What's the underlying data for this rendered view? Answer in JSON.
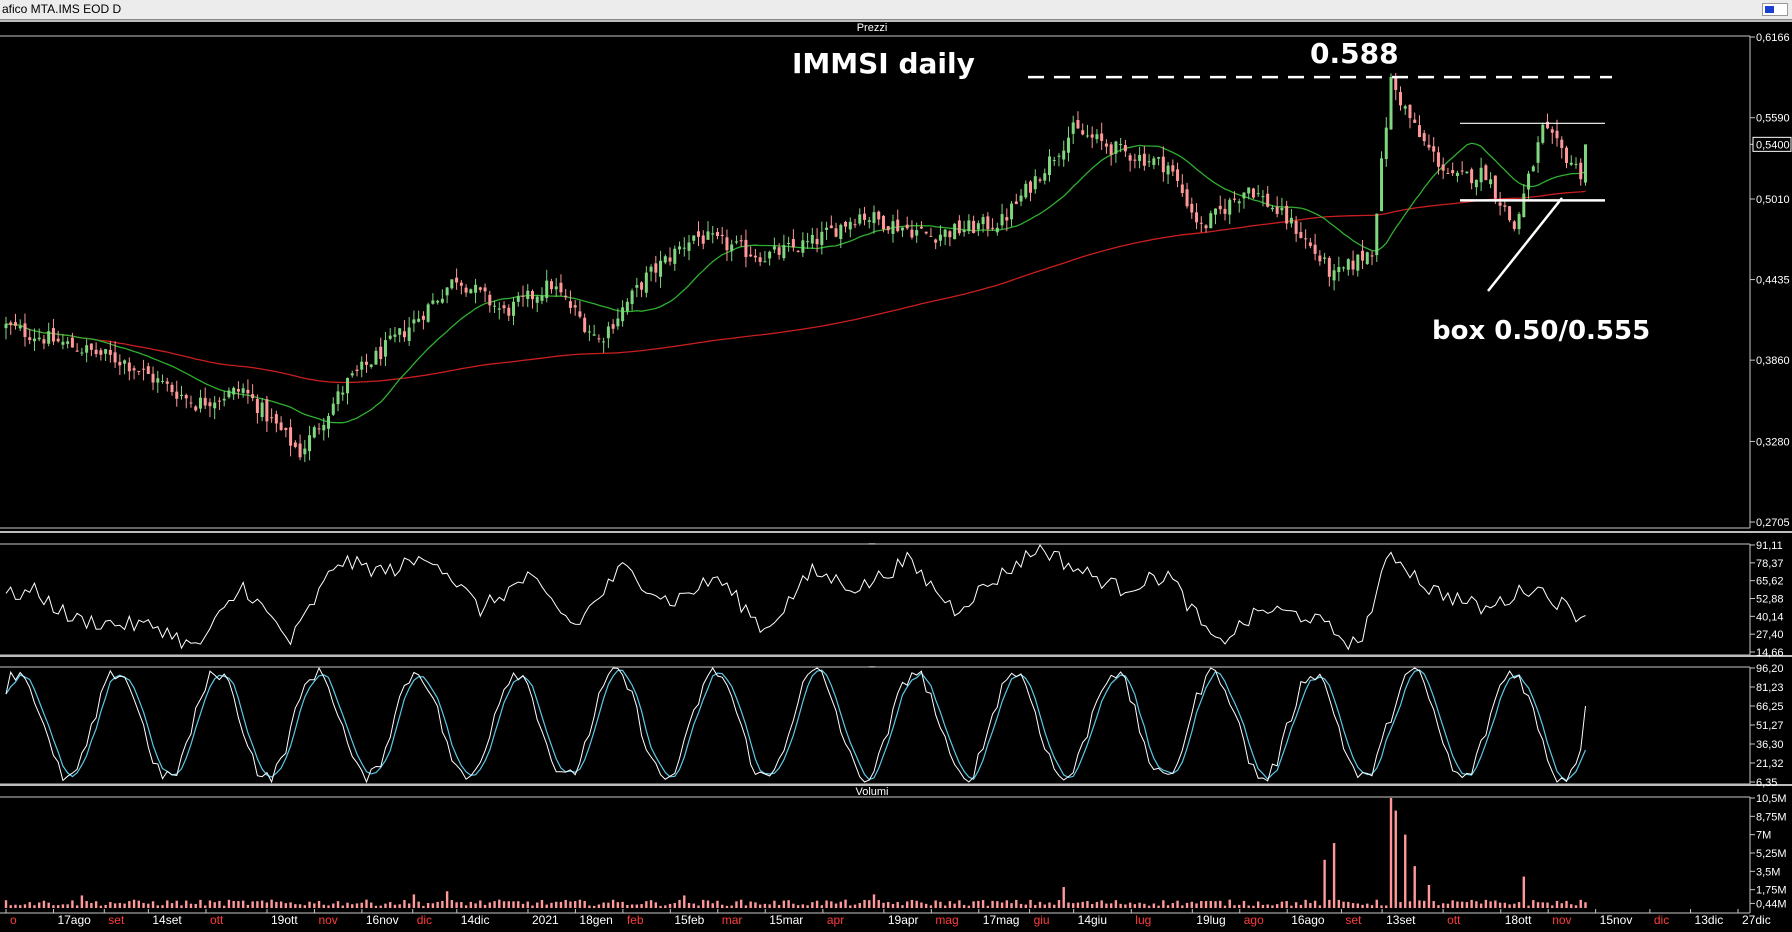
{
  "window": {
    "title": "afico MTA.IMS EOD D"
  },
  "panels": {
    "price": {
      "label": "Prezzi"
    },
    "ind1": {
      "label": "_"
    },
    "ind2": {
      "label": "_"
    },
    "volume": {
      "label": "Volumi"
    }
  },
  "annotations": {
    "title": "IMMSI daily",
    "resistance": "0.588",
    "box": "box 0.50/0.555"
  },
  "colors": {
    "background": "#000000",
    "bull_candle": "#7fd67f",
    "bear_candle": "#ff9999",
    "ma_short": "#2fae2f",
    "ma_long": "#c81e1e",
    "oscillator": "#ffffff",
    "stoch_k": "#ffffff",
    "stoch_d": "#5cc8e6",
    "volume_bar": "#ff9999",
    "month_label": "#ff3b3b",
    "date_label": "#ffffff"
  },
  "chart_data": [
    {
      "panel": "price",
      "type": "candlestick",
      "ylim": [
        0.2705,
        0.6166
      ],
      "ytick_labels": [
        "0,6166",
        "0,5590",
        "0,5400",
        "0,5010",
        "0,4435",
        "0,3860",
        "0,3280",
        "0,2705"
      ],
      "ytick_values": [
        0.6166,
        0.559,
        0.54,
        0.501,
        0.4435,
        0.386,
        0.328,
        0.2705
      ],
      "last_price_label": "0,5400",
      "anchors": [
        [
          0,
          0.41
        ],
        [
          10,
          0.4
        ],
        [
          25,
          0.385
        ],
        [
          40,
          0.355
        ],
        [
          50,
          0.365
        ],
        [
          62,
          0.32
        ],
        [
          72,
          0.37
        ],
        [
          85,
          0.41
        ],
        [
          95,
          0.445
        ],
        [
          105,
          0.42
        ],
        [
          115,
          0.44
        ],
        [
          125,
          0.4
        ],
        [
          135,
          0.445
        ],
        [
          145,
          0.475
        ],
        [
          160,
          0.46
        ],
        [
          170,
          0.47
        ],
        [
          180,
          0.49
        ],
        [
          195,
          0.475
        ],
        [
          210,
          0.485
        ],
        [
          225,
          0.55
        ],
        [
          235,
          0.535
        ],
        [
          245,
          0.525
        ],
        [
          252,
          0.48
        ],
        [
          262,
          0.51
        ],
        [
          272,
          0.48
        ],
        [
          280,
          0.445
        ],
        [
          288,
          0.465
        ],
        [
          292,
          0.585
        ],
        [
          298,
          0.545
        ],
        [
          305,
          0.515
        ],
        [
          312,
          0.52
        ],
        [
          318,
          0.48
        ],
        [
          324,
          0.55
        ],
        [
          332,
          0.52
        ],
        [
          338,
          0.51
        ],
        [
          344,
          0.53
        ]
      ],
      "ma_short_label": "",
      "ma_long_label": "",
      "resistance_level": 0.588,
      "box_top": 0.555,
      "box_bottom": 0.5
    },
    {
      "panel": "ind1",
      "type": "line",
      "ylim": [
        14.66,
        91.11
      ],
      "ytick_labels": [
        "91,11",
        "78,37",
        "65,62",
        "52,88",
        "40,14",
        "27,40",
        "14,66"
      ],
      "ytick_values": [
        91.11,
        78.37,
        65.62,
        52.88,
        40.14,
        27.4,
        14.66
      ],
      "anchors": [
        [
          0,
          55
        ],
        [
          6,
          58
        ],
        [
          14,
          38
        ],
        [
          22,
          35
        ],
        [
          32,
          33
        ],
        [
          40,
          17
        ],
        [
          50,
          62
        ],
        [
          60,
          22
        ],
        [
          70,
          80
        ],
        [
          80,
          72
        ],
        [
          90,
          83
        ],
        [
          100,
          45
        ],
        [
          110,
          68
        ],
        [
          120,
          33
        ],
        [
          130,
          75
        ],
        [
          140,
          50
        ],
        [
          150,
          68
        ],
        [
          160,
          30
        ],
        [
          170,
          72
        ],
        [
          180,
          60
        ],
        [
          190,
          80
        ],
        [
          200,
          45
        ],
        [
          210,
          70
        ],
        [
          218,
          90
        ],
        [
          225,
          75
        ],
        [
          235,
          60
        ],
        [
          245,
          70
        ],
        [
          255,
          20
        ],
        [
          265,
          45
        ],
        [
          275,
          40
        ],
        [
          285,
          18
        ],
        [
          292,
          86
        ],
        [
          300,
          60
        ],
        [
          312,
          45
        ],
        [
          322,
          62
        ],
        [
          332,
          40
        ],
        [
          338,
          55
        ],
        [
          344,
          68
        ]
      ]
    },
    {
      "panel": "ind2",
      "type": "line",
      "ylim": [
        6.35,
        96.2
      ],
      "ytick_labels": [
        "96,20",
        "81,23",
        "66,25",
        "51,27",
        "36,30",
        "21,32",
        "6,35"
      ],
      "ytick_values": [
        96.2,
        81.23,
        66.25,
        51.27,
        36.3,
        21.32,
        6.35
      ],
      "period": 21,
      "last_value": 66.25,
      "series": [
        {
          "values_label": ""
        },
        {
          "values_label": ""
        }
      ]
    },
    {
      "panel": "volume",
      "type": "bar",
      "ylim": [
        0.44,
        10.5
      ],
      "ytick_labels": [
        "10,5M",
        "8,75M",
        "7M",
        "5,25M",
        "3,5M",
        "1,75M",
        "0,44M"
      ],
      "ytick_values": [
        10.5,
        8.75,
        7,
        5.25,
        3.5,
        1.75,
        0.44
      ],
      "spikes": [
        [
          16,
          1.2
        ],
        [
          86,
          1.3
        ],
        [
          93,
          1.6
        ],
        [
          143,
          1.2
        ],
        [
          183,
          1.3
        ],
        [
          223,
          2.0
        ],
        [
          278,
          4.6
        ],
        [
          280,
          6.2
        ],
        [
          292,
          10.5
        ],
        [
          293,
          9.3
        ],
        [
          295,
          7.0
        ],
        [
          297,
          4.0
        ],
        [
          300,
          2.2
        ],
        [
          320,
          3.0
        ],
        [
          344,
          1.2
        ]
      ]
    }
  ],
  "xaxis": {
    "start": "2020-08-03",
    "end": "2021-12-27",
    "last_bar": "2021-11-12",
    "labels": [
      {
        "text": "o",
        "date": "2020-08-03",
        "month": true
      },
      {
        "text": "17ago",
        "date": "2020-08-17",
        "month": false
      },
      {
        "text": "set",
        "date": "2020-09-01",
        "month": true
      },
      {
        "text": "14set",
        "date": "2020-09-14",
        "month": false
      },
      {
        "text": "ott",
        "date": "2020-10-01",
        "month": true
      },
      {
        "text": "19ott",
        "date": "2020-10-19",
        "month": false
      },
      {
        "text": "nov",
        "date": "2020-11-02",
        "month": true
      },
      {
        "text": "16nov",
        "date": "2020-11-16",
        "month": false
      },
      {
        "text": "dic",
        "date": "2020-12-01",
        "month": true
      },
      {
        "text": "14dic",
        "date": "2020-12-14",
        "month": false
      },
      {
        "text": "2021",
        "date": "2021-01-04",
        "month": false
      },
      {
        "text": "18gen",
        "date": "2021-01-18",
        "month": false
      },
      {
        "text": "feb",
        "date": "2021-02-01",
        "month": true
      },
      {
        "text": "15feb",
        "date": "2021-02-15",
        "month": false
      },
      {
        "text": "mar",
        "date": "2021-03-01",
        "month": true
      },
      {
        "text": "15mar",
        "date": "2021-03-15",
        "month": false
      },
      {
        "text": "apr",
        "date": "2021-04-01",
        "month": true
      },
      {
        "text": "19apr",
        "date": "2021-04-19",
        "month": false
      },
      {
        "text": "mag",
        "date": "2021-05-03",
        "month": true
      },
      {
        "text": "17mag",
        "date": "2021-05-17",
        "month": false
      },
      {
        "text": "giu",
        "date": "2021-06-01",
        "month": true
      },
      {
        "text": "14giu",
        "date": "2021-06-14",
        "month": false
      },
      {
        "text": "lug",
        "date": "2021-07-01",
        "month": true
      },
      {
        "text": "19lug",
        "date": "2021-07-19",
        "month": false
      },
      {
        "text": "ago",
        "date": "2021-08-02",
        "month": true
      },
      {
        "text": "16ago",
        "date": "2021-08-16",
        "month": false
      },
      {
        "text": "set",
        "date": "2021-09-01",
        "month": true
      },
      {
        "text": "13set",
        "date": "2021-09-13",
        "month": false
      },
      {
        "text": "ott",
        "date": "2021-10-01",
        "month": true
      },
      {
        "text": "18ott",
        "date": "2021-10-18",
        "month": false
      },
      {
        "text": "nov",
        "date": "2021-11-01",
        "month": true
      },
      {
        "text": "15nov",
        "date": "2021-11-15",
        "month": false
      },
      {
        "text": "dic",
        "date": "2021-12-01",
        "month": true
      },
      {
        "text": "13dic",
        "date": "2021-12-13",
        "month": false
      },
      {
        "text": "27dic",
        "date": "2021-12-27",
        "month": false
      }
    ]
  }
}
